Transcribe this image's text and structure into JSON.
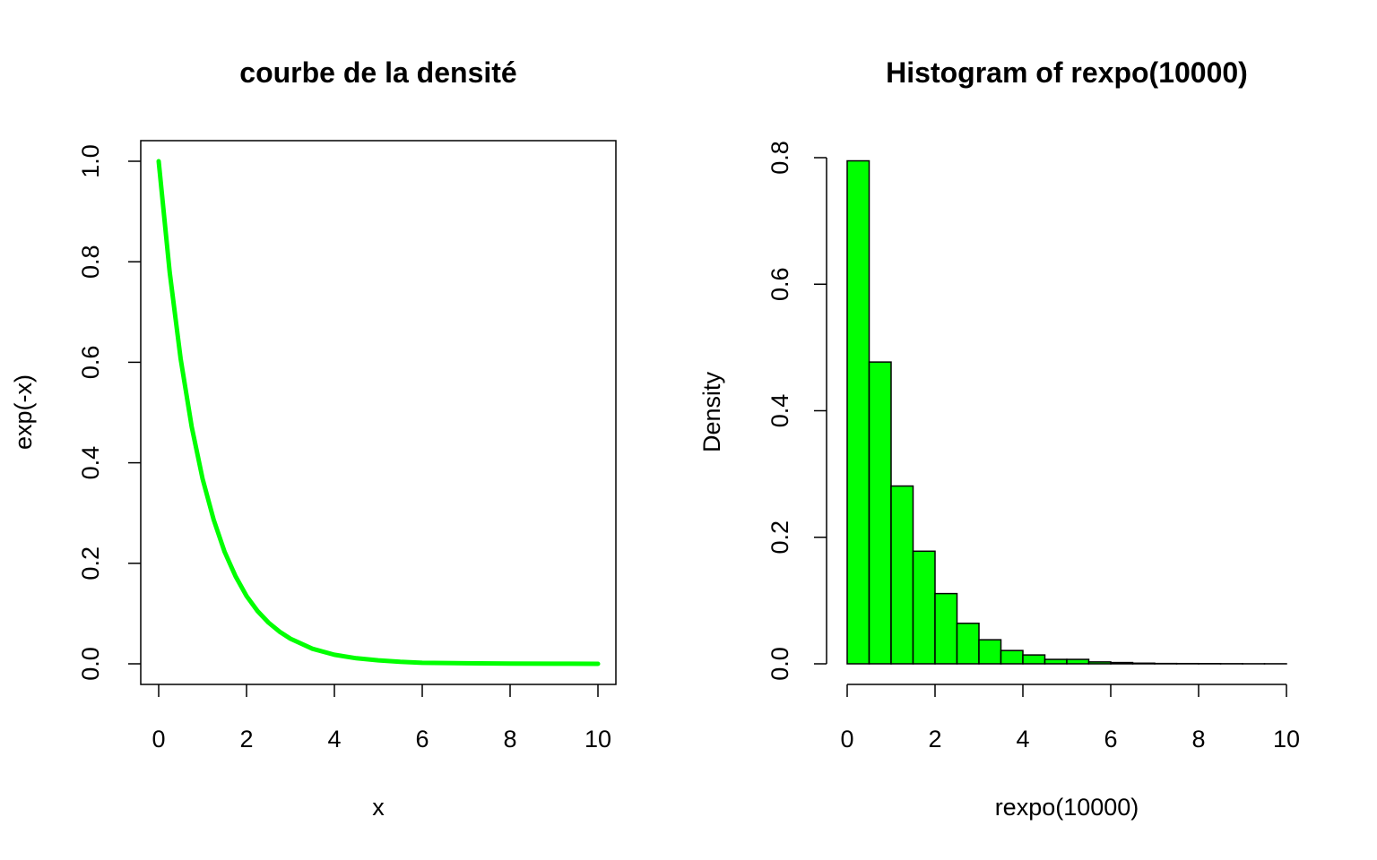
{
  "colors": {
    "series": "#00ff00",
    "axis": "#000000",
    "background": "#ffffff"
  },
  "chart_data": [
    {
      "type": "line",
      "title": "courbe de la densité",
      "xlabel": "x",
      "ylabel": "exp(-x)",
      "function": "exp(-x)",
      "x": [
        0,
        0.25,
        0.5,
        0.75,
        1,
        1.25,
        1.5,
        1.75,
        2,
        2.25,
        2.5,
        2.75,
        3,
        3.5,
        4,
        4.5,
        5,
        5.5,
        6,
        7,
        8,
        9,
        10
      ],
      "y": [
        1.0,
        0.779,
        0.607,
        0.472,
        0.368,
        0.287,
        0.223,
        0.174,
        0.135,
        0.105,
        0.082,
        0.064,
        0.05,
        0.03,
        0.018,
        0.011,
        0.007,
        0.004,
        0.002,
        0.001,
        0.0003,
        0.0001,
        0.0
      ],
      "xlim": [
        0,
        10
      ],
      "ylim": [
        0,
        1
      ],
      "xticks": [
        "0",
        "2",
        "4",
        "6",
        "8",
        "10"
      ],
      "yticks": [
        "0.0",
        "0.2",
        "0.4",
        "0.6",
        "0.8",
        "1.0"
      ],
      "line_color": "#00ff00",
      "box": true,
      "grid": false
    },
    {
      "type": "bar",
      "subtype": "histogram",
      "title": "Histogram of rexpo(10000)",
      "xlabel": "rexpo(10000)",
      "ylabel": "Density",
      "bin_width": 0.5,
      "bin_edges": [
        0,
        0.5,
        1,
        1.5,
        2,
        2.5,
        3,
        3.5,
        4,
        4.5,
        5,
        5.5,
        6,
        6.5,
        7,
        7.5,
        8,
        8.5,
        9,
        9.5,
        10
      ],
      "values": [
        0.795,
        0.477,
        0.281,
        0.178,
        0.111,
        0.064,
        0.038,
        0.021,
        0.014,
        0.007,
        0.007,
        0.003,
        0.002,
        0.001,
        0.0005,
        0.0004,
        0.0003,
        0.0002,
        0.0001,
        0.0001
      ],
      "xlim": [
        0,
        10
      ],
      "ylim": [
        0,
        0.8
      ],
      "xticks": [
        "0",
        "2",
        "4",
        "6",
        "8",
        "10"
      ],
      "yticks": [
        "0.0",
        "0.2",
        "0.4",
        "0.6",
        "0.8"
      ],
      "bar_color": "#00ff00",
      "box": false,
      "grid": false
    }
  ]
}
